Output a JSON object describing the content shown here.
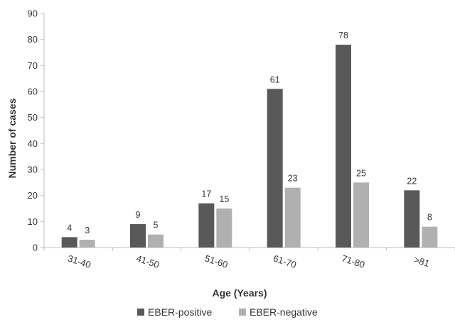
{
  "chart_data": {
    "type": "bar",
    "categories": [
      "31-40",
      "41-50",
      "51-60",
      "61-70",
      "71-80",
      ">81"
    ],
    "series": [
      {
        "name": "EBER-positive",
        "values": [
          4,
          9,
          17,
          61,
          78,
          22
        ],
        "color": "#595959"
      },
      {
        "name": "EBER-negative",
        "values": [
          3,
          5,
          15,
          23,
          25,
          8
        ],
        "color": "#b0b0b0"
      }
    ],
    "xlabel": "Age (Years)",
    "ylabel": "Number of cases",
    "ylim": [
      0,
      90
    ],
    "yticks": [
      0,
      10,
      20,
      30,
      40,
      50,
      60,
      70,
      80,
      90
    ],
    "grid": false,
    "legend_position": "bottom",
    "data_labels": true
  }
}
